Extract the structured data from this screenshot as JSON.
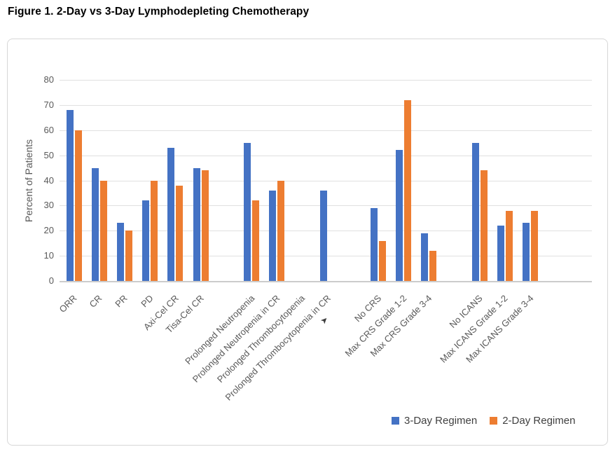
{
  "figure": {
    "title": "Figure 1. 2-Day vs 3-Day Lymphodepleting Chemotherapy"
  },
  "chart_data": {
    "type": "bar",
    "title": "Figure 1. 2-Day vs 3-Day Lymphodepleting Chemotherapy",
    "xlabel": "",
    "ylabel": "Percent of Patients",
    "ylim": [
      0,
      80
    ],
    "yticks": [
      0,
      10,
      20,
      30,
      40,
      50,
      60,
      70,
      80
    ],
    "grid": true,
    "legend_position": "bottom-right",
    "categories": [
      "ORR",
      "CR",
      "PR",
      "PD",
      "Axi-Cel CR",
      "Tisa-Cel CR",
      "Prolonged Neutropenia",
      "Prolonged Neutropenia in CR",
      "Prolonged Thrombocytopenia",
      "Prolonged Thrombocytopenia in CR",
      "No CRS",
      "Max CRS Grade 1-2",
      "Max CRS Grade 3-4",
      "No ICANS",
      "Max ICANS Grade 1-2",
      "Max ICANS Grade 3-4"
    ],
    "series": [
      {
        "name": "3-Day Regimen",
        "color": "#4472C4",
        "values": [
          68,
          45,
          23,
          32,
          53,
          45,
          55,
          36,
          null,
          36,
          29,
          52,
          19,
          55,
          22,
          23
        ]
      },
      {
        "name": "2-Day Regimen",
        "color": "#ED7D31",
        "values": [
          60,
          40,
          20,
          40,
          38,
          44,
          32,
          40,
          null,
          null,
          16,
          72,
          12,
          44,
          28,
          28
        ]
      }
    ],
    "category_slots": [
      0,
      1,
      2,
      3,
      4,
      5,
      7,
      8,
      9,
      10,
      12,
      13,
      14,
      16,
      17,
      18
    ],
    "empty_slots": [
      6,
      11,
      15
    ],
    "total_slots": 19
  },
  "cursor_glyph": "➤"
}
